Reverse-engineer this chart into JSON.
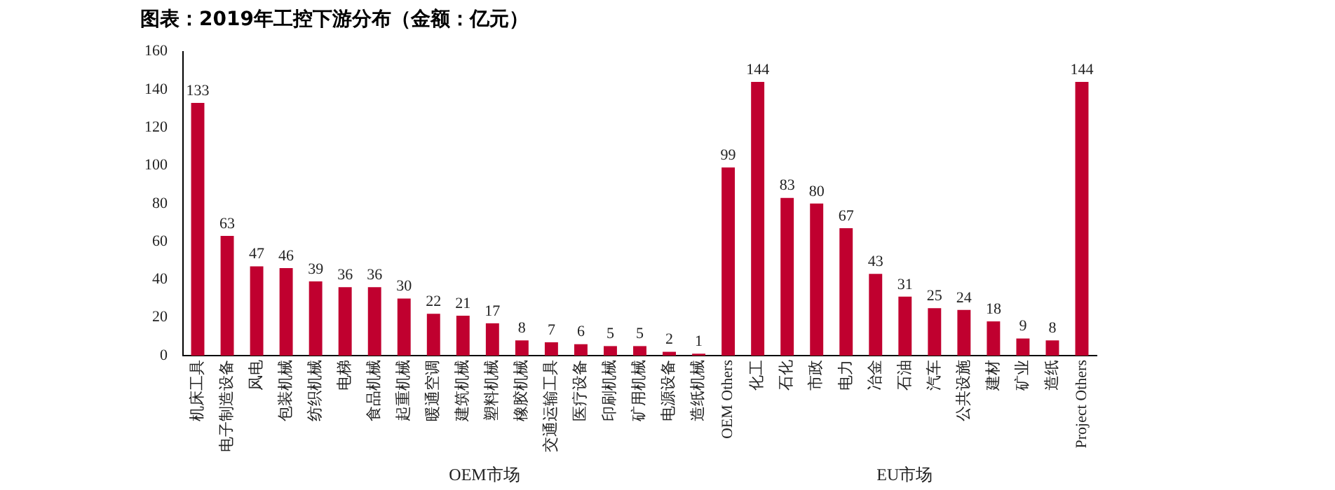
{
  "chart_data": {
    "type": "bar",
    "title": "图表：2019年工控下游分布（金额：亿元）",
    "categories": [
      "机床工具",
      "电子制造设备",
      "风电",
      "包装机械",
      "纺织机械",
      "电梯",
      "食品机械",
      "起重机械",
      "暖通空调",
      "建筑机械",
      "塑料机械",
      "橡胶机械",
      "交通运输工具",
      "医疗设备",
      "印刷机械",
      "矿用机械",
      "电源设备",
      "造纸机械",
      "OEM Others",
      "化工",
      "石化",
      "市政",
      "电力",
      "冶金",
      "石油",
      "汽车",
      "公共设施",
      "建材",
      "矿业",
      "造纸",
      "Project Others"
    ],
    "values": [
      133,
      63,
      47,
      46,
      39,
      36,
      36,
      30,
      22,
      21,
      17,
      8,
      7,
      6,
      5,
      5,
      2,
      1,
      99,
      144,
      83,
      80,
      67,
      43,
      31,
      25,
      24,
      18,
      9,
      8,
      144
    ],
    "color": "#c0002f",
    "ylim": [
      0,
      160
    ],
    "yticks": [
      0,
      20,
      40,
      60,
      80,
      100,
      120,
      140,
      160
    ],
    "grid": false,
    "legend": false,
    "data_labels": true,
    "annotations": [
      "OEM市场",
      "EU市场"
    ]
  }
}
